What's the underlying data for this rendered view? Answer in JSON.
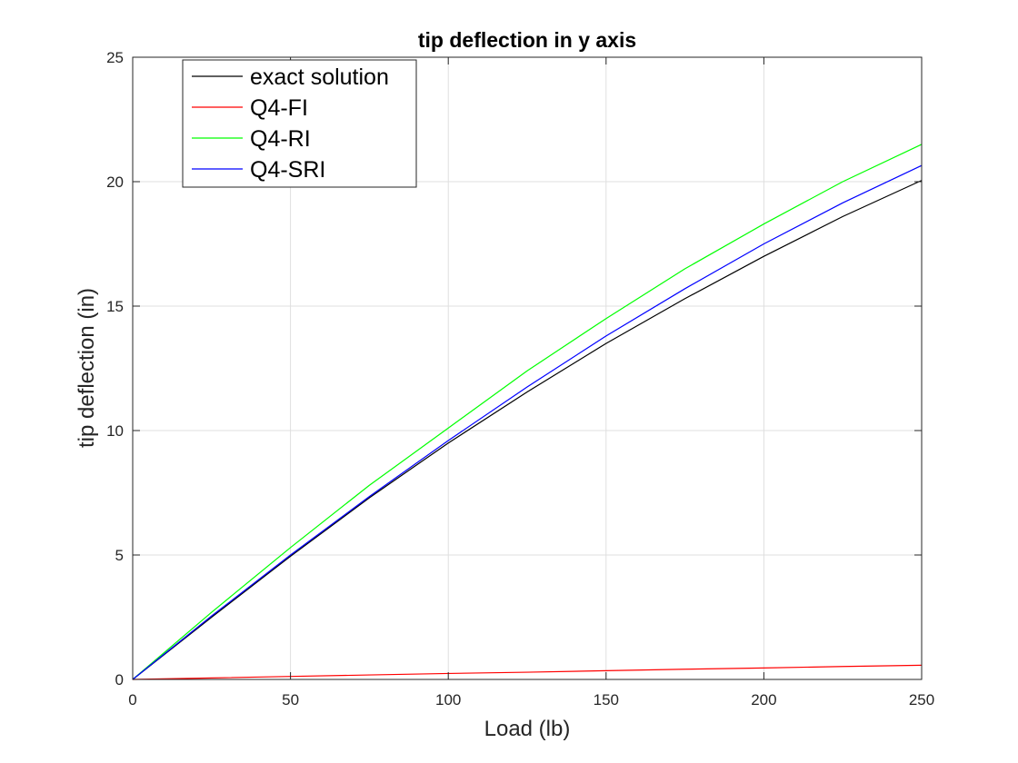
{
  "chart_data": {
    "type": "line",
    "title": "tip deflection in y axis",
    "xlabel": "Load (lb)",
    "ylabel": "tip deflection (in)",
    "xlim": [
      0,
      250
    ],
    "ylim": [
      0,
      25
    ],
    "xticks": [
      0,
      50,
      100,
      150,
      200,
      250
    ],
    "yticks": [
      0,
      5,
      10,
      15,
      20,
      25
    ],
    "grid": true,
    "legend_position": "top-left",
    "x": [
      0,
      25,
      50,
      75,
      100,
      125,
      150,
      175,
      200,
      225,
      250
    ],
    "series": [
      {
        "name": "exact solution",
        "color": "#000000",
        "values": [
          0,
          2.5,
          4.95,
          7.3,
          9.5,
          11.55,
          13.5,
          15.3,
          17.0,
          18.6,
          20.05
        ]
      },
      {
        "name": "Q4-FI",
        "color": "#ff0000",
        "values": [
          0,
          0.06,
          0.12,
          0.18,
          0.24,
          0.29,
          0.35,
          0.41,
          0.46,
          0.52,
          0.57
        ]
      },
      {
        "name": "Q4-RI",
        "color": "#00ff00",
        "values": [
          0,
          2.7,
          5.3,
          7.8,
          10.1,
          12.4,
          14.5,
          16.5,
          18.3,
          20.0,
          21.5
        ]
      },
      {
        "name": "Q4-SRI",
        "color": "#0000ff",
        "values": [
          0,
          2.55,
          5.0,
          7.35,
          9.6,
          11.75,
          13.8,
          15.7,
          17.5,
          19.15,
          20.65
        ]
      }
    ]
  }
}
